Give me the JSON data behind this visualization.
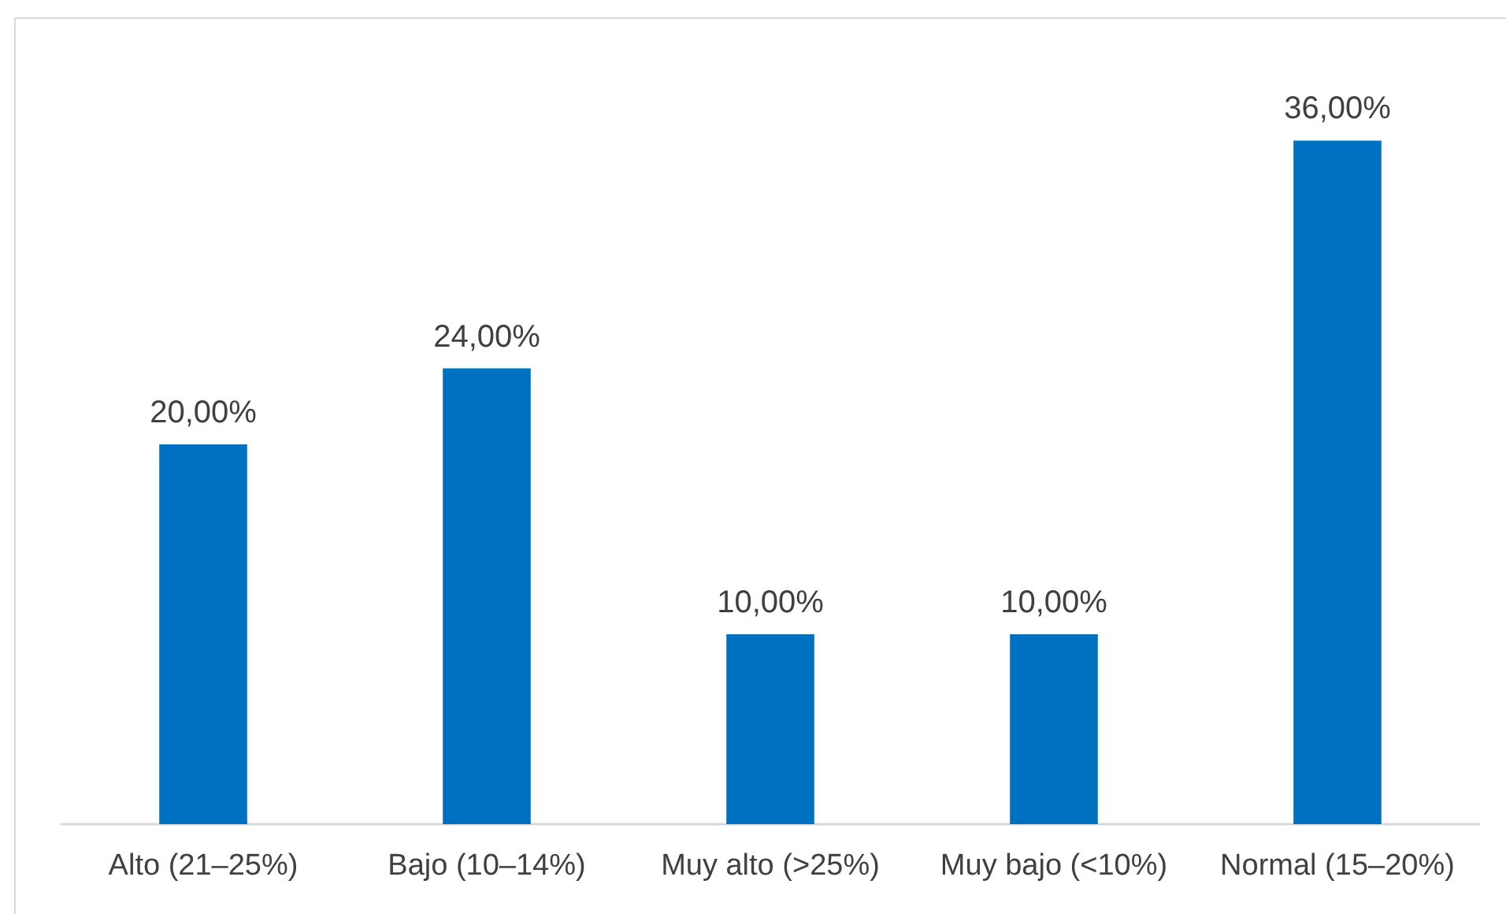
{
  "chart_data": {
    "type": "bar",
    "categories": [
      "Alto (21–25%)",
      "Bajo (10–14%)",
      "Muy alto (>25%)",
      "Muy bajo (<10%)",
      "Normal (15–20%)"
    ],
    "values": [
      20,
      24,
      10,
      10,
      36
    ],
    "color": "#0070c0",
    "value_labels": [
      "20,00%",
      "24,00%",
      "10,00%",
      "10,00%",
      "36,00%"
    ],
    "tick_labels": "x"
  }
}
